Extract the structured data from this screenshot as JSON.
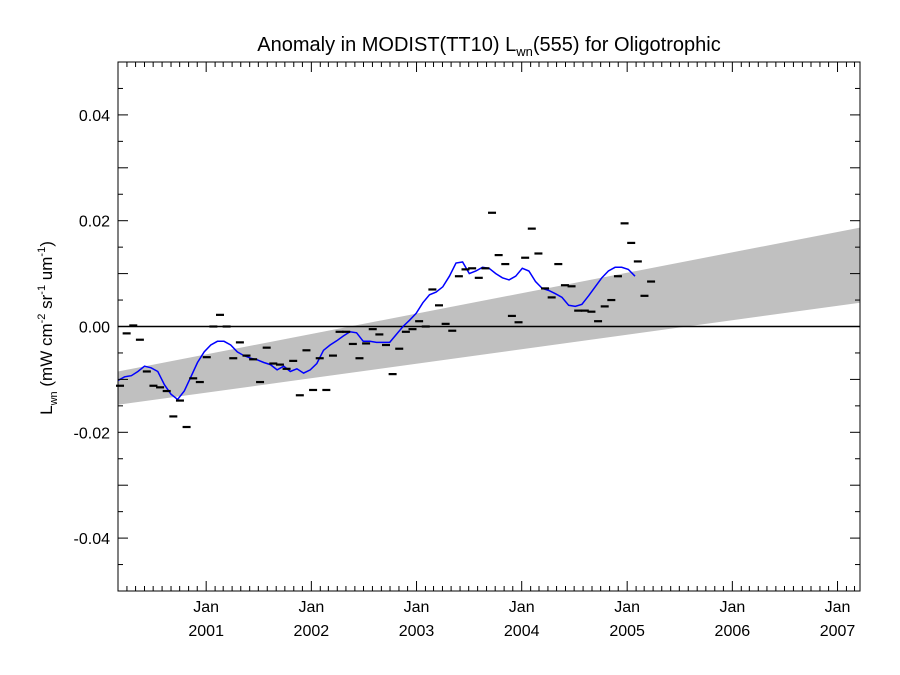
{
  "chart_data": {
    "type": "scatter",
    "title": {
      "prefix": "Anomaly in MODIST(TT10) L",
      "sub": "wn",
      "suffix": "(555) for Oligotrophic"
    },
    "ylabel": {
      "main": "L",
      "sub": "wn",
      "units_open": " (mW cm",
      "exp1": "-2",
      "mid1": " sr",
      "exp2": "-1",
      "mid2": " um",
      "exp3": "-1",
      "close": ")"
    },
    "ylim": [
      -0.05,
      0.05
    ],
    "xlim": [
      "2000-03-01",
      "2007-03-20"
    ],
    "y_ticks": [
      {
        "value": -0.04,
        "label": "-0.04"
      },
      {
        "value": -0.02,
        "label": "-0.02"
      },
      {
        "value": 0.0,
        "label": "0.00"
      },
      {
        "value": 0.02,
        "label": "0.02"
      },
      {
        "value": 0.04,
        "label": "0.04"
      }
    ],
    "x_ticks": [
      {
        "date": "2001-01-01",
        "month": "Jan",
        "year": "2001"
      },
      {
        "date": "2002-01-01",
        "month": "Jan",
        "year": "2002"
      },
      {
        "date": "2003-01-01",
        "month": "Jan",
        "year": "2003"
      },
      {
        "date": "2004-01-01",
        "month": "Jan",
        "year": "2004"
      },
      {
        "date": "2005-01-01",
        "month": "Jan",
        "year": "2005"
      },
      {
        "date": "2006-01-01",
        "month": "Jan",
        "year": "2006"
      },
      {
        "date": "2007-01-01",
        "month": "Jan",
        "year": "2007"
      }
    ],
    "zero_line": 0.0,
    "band": {
      "color": "#c0c0c0",
      "start": {
        "date": "2000-03-01",
        "low": -0.0148,
        "high": -0.0085
      },
      "end": {
        "date": "2007-03-20",
        "low": 0.0045,
        "high": 0.0187
      }
    },
    "line_color": "#0000ff",
    "marker_color": "#000000",
    "points": [
      [
        "2000-03-08",
        -0.0112
      ],
      [
        "2000-03-31",
        -0.0013
      ],
      [
        "2000-04-23",
        0.0002
      ],
      [
        "2000-05-16",
        -0.0025
      ],
      [
        "2000-06-09",
        -0.0085
      ],
      [
        "2000-07-02",
        -0.0112
      ],
      [
        "2000-07-25",
        -0.0115
      ],
      [
        "2000-08-17",
        -0.0122
      ],
      [
        "2000-09-09",
        -0.017
      ],
      [
        "2000-10-02",
        -0.014
      ],
      [
        "2000-10-25",
        -0.019
      ],
      [
        "2000-11-17",
        -0.0098
      ],
      [
        "2000-12-10",
        -0.0105
      ],
      [
        "2001-01-03",
        -0.0058
      ],
      [
        "2001-01-26",
        0.0
      ],
      [
        "2001-02-18",
        0.0022
      ],
      [
        "2001-03-13",
        0.0
      ],
      [
        "2001-04-05",
        -0.006
      ],
      [
        "2001-04-28",
        -0.003
      ],
      [
        "2001-05-21",
        -0.0055
      ],
      [
        "2001-06-13",
        -0.0062
      ],
      [
        "2001-07-07",
        -0.0105
      ],
      [
        "2001-07-30",
        -0.004
      ],
      [
        "2001-08-22",
        -0.007
      ],
      [
        "2001-09-14",
        -0.0072
      ],
      [
        "2001-10-07",
        -0.008
      ],
      [
        "2001-10-30",
        -0.0065
      ],
      [
        "2001-11-22",
        -0.013
      ],
      [
        "2001-12-15",
        -0.0045
      ],
      [
        "2002-01-07",
        -0.012
      ],
      [
        "2002-01-30",
        -0.006
      ],
      [
        "2002-02-22",
        -0.012
      ],
      [
        "2002-03-17",
        -0.0055
      ],
      [
        "2002-04-09",
        -0.001
      ],
      [
        "2002-05-02",
        -0.001
      ],
      [
        "2002-05-25",
        -0.0033
      ],
      [
        "2002-06-17",
        -0.006
      ],
      [
        "2002-07-10",
        -0.0032
      ],
      [
        "2002-08-02",
        -0.0005
      ],
      [
        "2002-08-25",
        -0.0015
      ],
      [
        "2002-09-17",
        -0.0035
      ],
      [
        "2002-10-10",
        -0.009
      ],
      [
        "2002-11-02",
        -0.0042
      ],
      [
        "2002-11-25",
        -0.001
      ],
      [
        "2002-12-18",
        -0.0005
      ],
      [
        "2003-01-10",
        0.001
      ],
      [
        "2003-02-02",
        0.0
      ],
      [
        "2003-02-25",
        0.007
      ],
      [
        "2003-03-20",
        0.004
      ],
      [
        "2003-04-12",
        0.0005
      ],
      [
        "2003-05-05",
        -0.0008
      ],
      [
        "2003-05-28",
        0.0095
      ],
      [
        "2003-06-20",
        0.0108
      ],
      [
        "2003-07-13",
        0.011
      ],
      [
        "2003-08-05",
        0.0092
      ],
      [
        "2003-08-28",
        0.011
      ],
      [
        "2003-09-20",
        0.0215
      ],
      [
        "2003-10-13",
        0.0135
      ],
      [
        "2003-11-05",
        0.0118
      ],
      [
        "2003-11-28",
        0.002
      ],
      [
        "2003-12-21",
        0.0008
      ],
      [
        "2004-01-13",
        0.013
      ],
      [
        "2004-02-05",
        0.0185
      ],
      [
        "2004-02-28",
        0.0138
      ],
      [
        "2004-03-22",
        0.0072
      ],
      [
        "2004-04-14",
        0.0055
      ],
      [
        "2004-05-07",
        0.0118
      ],
      [
        "2004-05-30",
        0.0078
      ],
      [
        "2004-06-22",
        0.0076
      ],
      [
        "2004-07-15",
        0.003
      ],
      [
        "2004-08-07",
        0.003
      ],
      [
        "2004-08-30",
        0.0028
      ],
      [
        "2004-09-22",
        0.001
      ],
      [
        "2004-10-15",
        0.0038
      ],
      [
        "2004-11-07",
        0.005
      ],
      [
        "2004-11-30",
        0.0095
      ],
      [
        "2004-12-23",
        0.0195
      ],
      [
        "2005-01-15",
        0.0158
      ],
      [
        "2005-02-07",
        0.0123
      ],
      [
        "2005-03-02",
        0.0058
      ],
      [
        "2005-03-25",
        0.0085
      ]
    ],
    "smooth": [
      [
        "2000-03-01",
        -0.0102
      ],
      [
        "2000-03-24",
        -0.0095
      ],
      [
        "2000-04-16",
        -0.0093
      ],
      [
        "2000-05-09",
        -0.0085
      ],
      [
        "2000-06-01",
        -0.0075
      ],
      [
        "2000-06-24",
        -0.0078
      ],
      [
        "2000-07-17",
        -0.0085
      ],
      [
        "2000-08-09",
        -0.011
      ],
      [
        "2000-09-01",
        -0.0128
      ],
      [
        "2000-09-24",
        -0.0138
      ],
      [
        "2000-10-17",
        -0.0122
      ],
      [
        "2000-11-09",
        -0.0095
      ],
      [
        "2000-12-02",
        -0.0068
      ],
      [
        "2000-12-25",
        -0.0048
      ],
      [
        "2001-01-17",
        -0.0035
      ],
      [
        "2001-02-09",
        -0.0028
      ],
      [
        "2001-03-04",
        -0.0028
      ],
      [
        "2001-03-27",
        -0.0035
      ],
      [
        "2001-04-19",
        -0.0048
      ],
      [
        "2001-05-12",
        -0.0055
      ],
      [
        "2001-06-04",
        -0.006
      ],
      [
        "2001-06-27",
        -0.0063
      ],
      [
        "2001-07-20",
        -0.0068
      ],
      [
        "2001-08-12",
        -0.0072
      ],
      [
        "2001-09-04",
        -0.0082
      ],
      [
        "2001-09-27",
        -0.0075
      ],
      [
        "2001-10-20",
        -0.0085
      ],
      [
        "2001-11-12",
        -0.008
      ],
      [
        "2001-12-05",
        -0.0088
      ],
      [
        "2001-12-28",
        -0.0082
      ],
      [
        "2002-01-20",
        -0.007
      ],
      [
        "2002-02-12",
        -0.0045
      ],
      [
        "2002-03-07",
        -0.0035
      ],
      [
        "2002-03-30",
        -0.0027
      ],
      [
        "2002-04-22",
        -0.0018
      ],
      [
        "2002-05-15",
        -0.001
      ],
      [
        "2002-06-07",
        -0.0012
      ],
      [
        "2002-06-30",
        -0.0028
      ],
      [
        "2002-07-23",
        -0.0028
      ],
      [
        "2002-08-15",
        -0.003
      ],
      [
        "2002-09-07",
        -0.003
      ],
      [
        "2002-09-30",
        -0.003
      ],
      [
        "2002-10-23",
        -0.0015
      ],
      [
        "2002-11-15",
        0.0
      ],
      [
        "2002-12-08",
        0.0012
      ],
      [
        "2002-12-31",
        0.0025
      ],
      [
        "2003-01-23",
        0.0045
      ],
      [
        "2003-02-15",
        0.006
      ],
      [
        "2003-03-10",
        0.0065
      ],
      [
        "2003-04-02",
        0.0075
      ],
      [
        "2003-04-25",
        0.0095
      ],
      [
        "2003-05-18",
        0.012
      ],
      [
        "2003-06-10",
        0.0122
      ],
      [
        "2003-07-03",
        0.01
      ],
      [
        "2003-07-26",
        0.0105
      ],
      [
        "2003-08-18",
        0.0112
      ],
      [
        "2003-09-10",
        0.011
      ],
      [
        "2003-10-03",
        0.01
      ],
      [
        "2003-10-26",
        0.0092
      ],
      [
        "2003-11-18",
        0.0088
      ],
      [
        "2003-12-11",
        0.0095
      ],
      [
        "2004-01-03",
        0.011
      ],
      [
        "2004-01-26",
        0.0105
      ],
      [
        "2004-02-18",
        0.0085
      ],
      [
        "2004-03-12",
        0.0072
      ],
      [
        "2004-04-04",
        0.0068
      ],
      [
        "2004-04-27",
        0.0062
      ],
      [
        "2004-05-20",
        0.0055
      ],
      [
        "2004-06-12",
        0.004
      ],
      [
        "2004-07-05",
        0.0038
      ],
      [
        "2004-07-28",
        0.0042
      ],
      [
        "2004-08-20",
        0.0058
      ],
      [
        "2004-09-12",
        0.0075
      ],
      [
        "2004-10-05",
        0.0092
      ],
      [
        "2004-10-28",
        0.0105
      ],
      [
        "2004-11-20",
        0.0112
      ],
      [
        "2004-12-13",
        0.0112
      ],
      [
        "2005-01-05",
        0.0108
      ],
      [
        "2005-01-28",
        0.0095
      ]
    ]
  }
}
